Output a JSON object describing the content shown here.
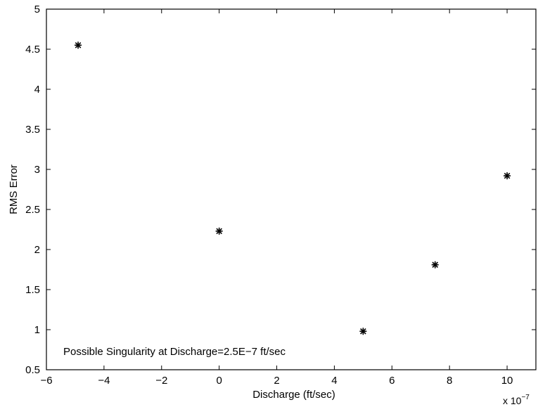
{
  "chart_data": {
    "type": "scatter",
    "xlabel": "Discharge (ft/sec)",
    "ylabel": "RMS Error",
    "x_multiplier": "x 10",
    "x_multiplier_exponent": "−7",
    "xlim": [
      -6,
      11
    ],
    "ylim": [
      0.5,
      5
    ],
    "x_ticks": [
      -6,
      -4,
      -2,
      0,
      2,
      4,
      6,
      8,
      10
    ],
    "y_ticks": [
      0.5,
      1,
      1.5,
      2,
      2.5,
      3,
      3.5,
      4,
      4.5,
      5
    ],
    "x_tick_labels": [
      "−6",
      "−4",
      "−2",
      "0",
      "2",
      "4",
      "6",
      "8",
      "10"
    ],
    "y_tick_labels": [
      "0.5",
      "1",
      "1.5",
      "2",
      "2.5",
      "3",
      "3.5",
      "4",
      "4.5",
      "5"
    ],
    "marker": "asterisk",
    "grid": false,
    "points": [
      {
        "x": -4.9,
        "y": 4.55
      },
      {
        "x": 0,
        "y": 2.23
      },
      {
        "x": 5,
        "y": 0.98
      },
      {
        "x": 7.5,
        "y": 1.81
      },
      {
        "x": 10,
        "y": 2.92
      }
    ],
    "annotation": "Possible Singularity at Discharge=2.5E−7 ft/sec"
  }
}
